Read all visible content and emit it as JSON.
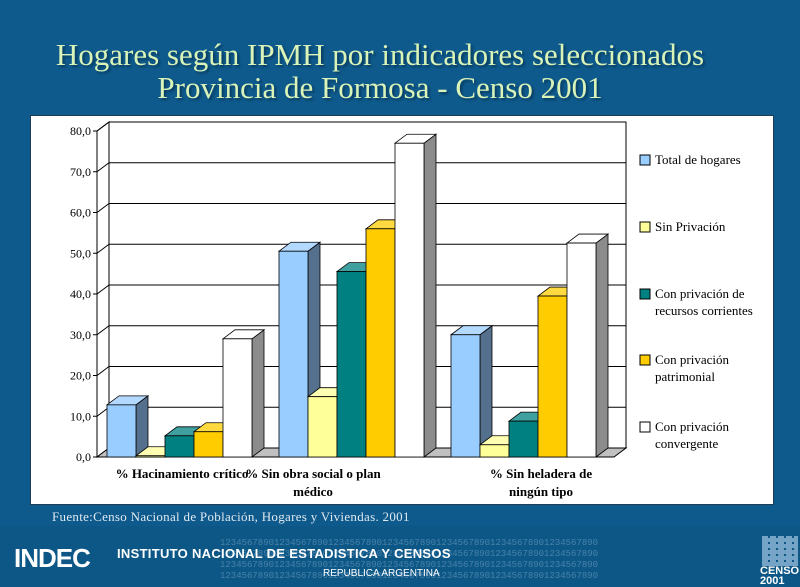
{
  "title_line1": "Hogares según IPMH por indicadores seleccionados",
  "title_line2": "Provincia de Formosa - Censo 2001",
  "source": "Fuente:Censo Nacional de Población, Hogares y Viviendas. 2001",
  "footer": {
    "logo": "INDEC",
    "institute": "INSTITUTO NACIONAL DE ESTADISTICA Y CENSOS",
    "country": "REPUBLICA ARGENTINA",
    "censo_logo": "CENSO 2001",
    "digits": "1234567890123456789012345678901234567890123456789012345678901234567890"
  },
  "chart_data": {
    "type": "bar",
    "ylim": [
      0,
      80
    ],
    "yticks": [
      "0,0",
      "10,0",
      "20,0",
      "30,0",
      "40,0",
      "50,0",
      "60,0",
      "70,0",
      "80,0"
    ],
    "categories": [
      [
        "% Hacinamiento crítico"
      ],
      [
        "% Sin obra social o plan",
        "médico"
      ],
      [
        "% Sin heladera de",
        "ningún tipo"
      ]
    ],
    "series": [
      {
        "name": [
          "Total de hogares"
        ],
        "values": [
          12.8,
          50.5,
          30.0
        ],
        "color": "#99ccff"
      },
      {
        "name": [
          "Sin Privación"
        ],
        "values": [
          0.3,
          14.8,
          3.0
        ],
        "color": "#ffff99"
      },
      {
        "name": [
          "Con privación de",
          "recursos corrientes"
        ],
        "values": [
          5.2,
          45.5,
          8.8
        ],
        "color": "#008080"
      },
      {
        "name": [
          "Con privación",
          "patrimonial"
        ],
        "values": [
          6.2,
          56.0,
          39.5
        ],
        "color": "#ffcc00"
      },
      {
        "name": [
          "Con privación",
          "convergente"
        ],
        "values": [
          29.0,
          77.0,
          52.5
        ],
        "color": "#ffffff"
      }
    ],
    "grid": true,
    "legend_position": "right",
    "style": "3d-clustered-column"
  }
}
